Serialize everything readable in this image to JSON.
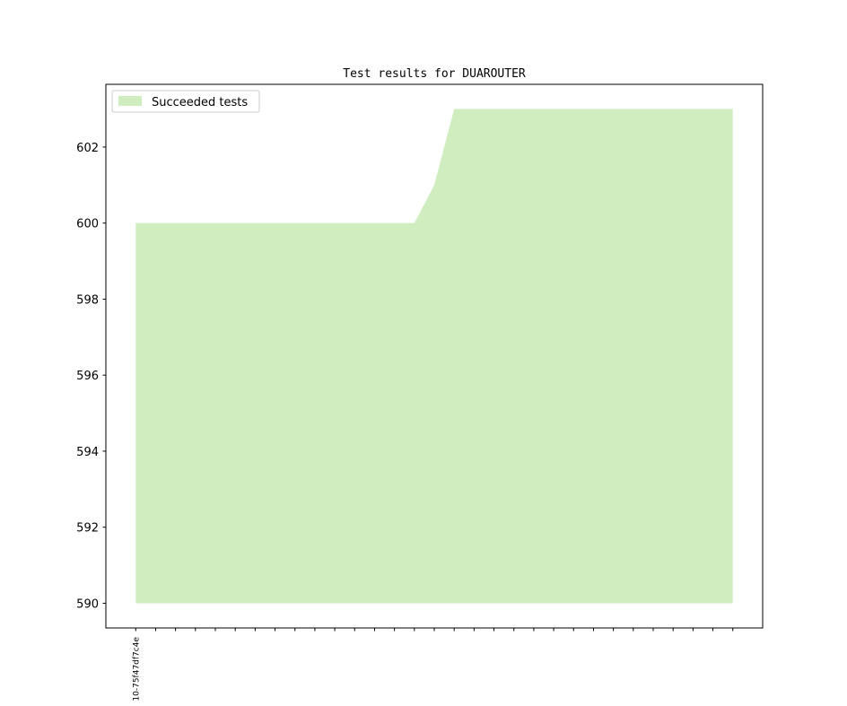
{
  "chart_data": {
    "type": "area",
    "title": "Test results for DUAROUTER",
    "categories": [
      "10-75f47df7c4e",
      null,
      null,
      null,
      null,
      null,
      null,
      null,
      null,
      null,
      null,
      null,
      null,
      null,
      null,
      null,
      null,
      null,
      null,
      null,
      null,
      null,
      null,
      null,
      null,
      null,
      null,
      null,
      null,
      null,
      null
    ],
    "series": [
      {
        "name": "Succeeded tests",
        "color": "#cfedbf",
        "values": [
          600,
          600,
          600,
          600,
          600,
          600,
          600,
          600,
          600,
          600,
          600,
          600,
          600,
          600,
          600,
          601,
          603,
          603,
          603,
          603,
          603,
          603,
          603,
          603,
          603,
          603,
          603,
          603,
          603,
          603,
          603
        ]
      }
    ],
    "baseline": 590,
    "ylim": [
      589.35,
      603.65
    ],
    "yticks": [
      590,
      592,
      594,
      596,
      598,
      600,
      602
    ],
    "legend": "upper left",
    "grid": false
  }
}
